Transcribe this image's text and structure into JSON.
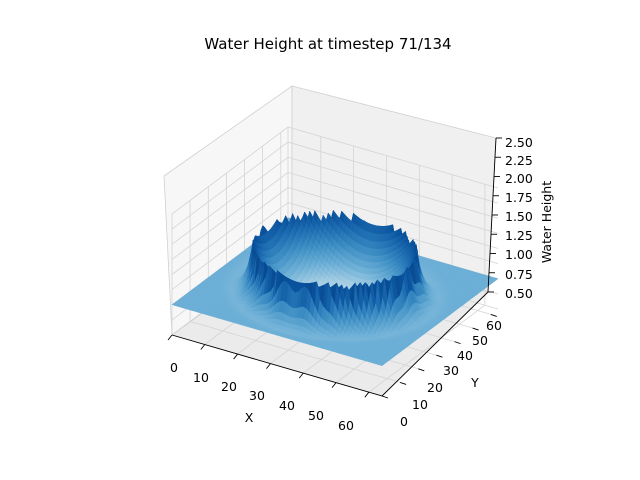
{
  "chart_data": {
    "type": "surface3d",
    "title": "Water Height at timestep 71/134",
    "xlabel": "X",
    "ylabel": "Y",
    "zlabel": "Water Height",
    "x_ticks": [
      "0",
      "10",
      "20",
      "30",
      "40",
      "50",
      "60"
    ],
    "y_ticks": [
      "0",
      "10",
      "20",
      "30",
      "40",
      "50",
      "60"
    ],
    "z_ticks": [
      "0.50",
      "0.75",
      "1.00",
      "1.25",
      "1.50",
      "1.75",
      "2.00",
      "2.25",
      "2.50"
    ],
    "xlim": [
      0,
      64
    ],
    "ylim": [
      0,
      64
    ],
    "zlim": [
      0.5,
      2.5
    ],
    "colormap": "Blues",
    "surface": {
      "base_height": 1.0,
      "ring_center": [
        32,
        32
      ],
      "ring_radius": 22,
      "ring_crest_height": 1.75,
      "center_trough_height": 0.55,
      "center_peak_height": 0.75
    },
    "grid": true
  }
}
